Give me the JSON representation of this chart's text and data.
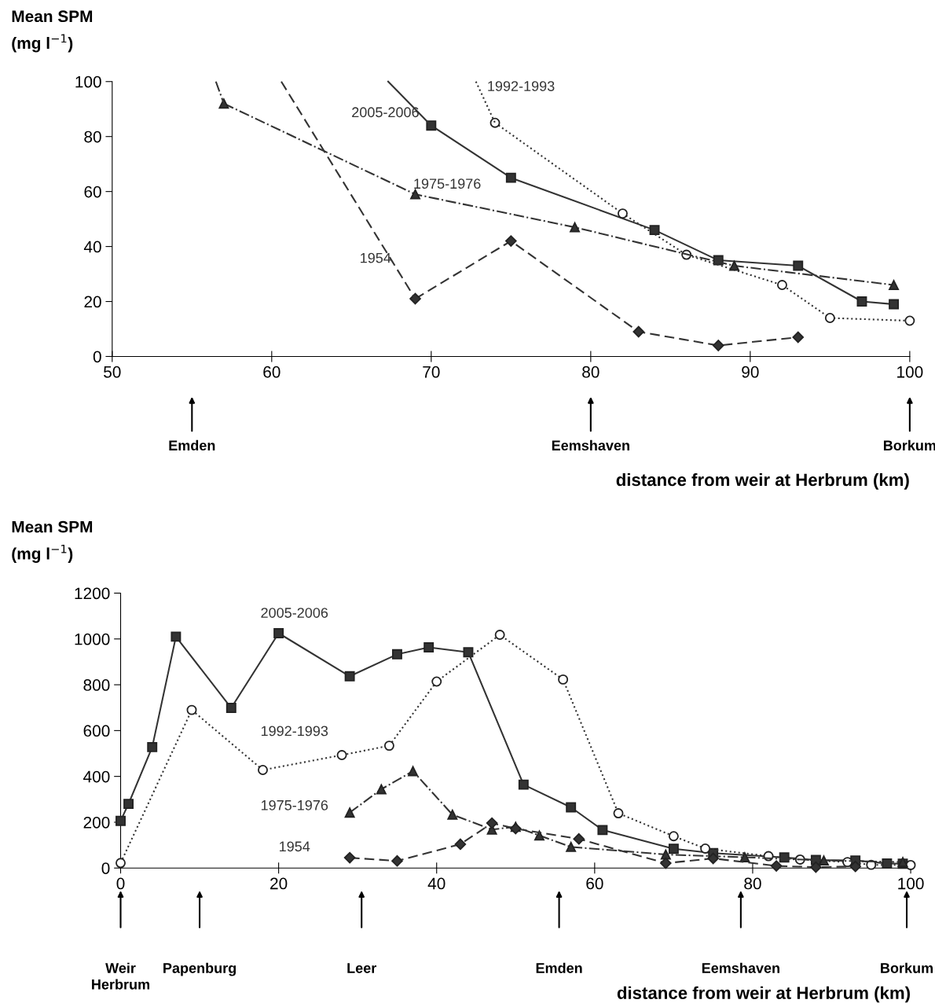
{
  "chart_data": [
    {
      "type": "line",
      "ylabel": "Mean SPM\n(mg l$^{−1}$)",
      "xlabel": "distance from weir at Herbrum (km)",
      "xlim": [
        50,
        100
      ],
      "xticks": [
        50,
        60,
        70,
        80,
        90,
        100
      ],
      "ylim": [
        0,
        100
      ],
      "yticks": [
        0,
        20,
        40,
        60,
        80,
        100
      ],
      "grid": false,
      "legend": false,
      "series": [
        {
          "name": "2005-2006",
          "color": "#333333",
          "line_style": "solid",
          "marker": "square",
          "x": [
            70,
            75,
            84,
            88,
            93,
            97,
            99
          ],
          "values": [
            84,
            65,
            46,
            35,
            33,
            20,
            19
          ]
        },
        {
          "name": "1992-1993",
          "color": "#333333",
          "line_style": "dotted",
          "marker": "circle",
          "x": [
            74,
            82,
            86,
            92,
            95,
            100
          ],
          "values": [
            85,
            52,
            37,
            26,
            14,
            13
          ]
        },
        {
          "name": "1975-1976",
          "color": "#333333",
          "line_style": "dashdot",
          "marker": "triangle",
          "x": [
            57,
            69,
            79,
            89,
            99
          ],
          "values": [
            92,
            59,
            47,
            33,
            26
          ]
        },
        {
          "name": "1954",
          "color": "#333333",
          "line_style": "dashed",
          "marker": "diamond",
          "x": [
            69,
            75,
            83,
            88,
            93
          ],
          "values": [
            21,
            42,
            9,
            4,
            7
          ]
        },
        {
          "color": "#333333",
          "line_style": "solid",
          "marker": "none",
          "x": [
            67.3,
            70
          ],
          "values": [
            100,
            84
          ]
        },
        {
          "color": "#333333",
          "line_style": "dotted",
          "marker": "none",
          "x": [
            72.8,
            74
          ],
          "values": [
            100,
            85
          ]
        },
        {
          "color": "#333333",
          "line_style": "dashdot",
          "marker": "none",
          "x": [
            56.5,
            57
          ],
          "values": [
            100,
            92
          ]
        },
        {
          "color": "#333333",
          "line_style": "dashed",
          "marker": "none",
          "x": [
            60.6,
            69
          ],
          "values": [
            100,
            21
          ]
        }
      ],
      "annotations": [
        "Emden",
        "Eemshaven",
        "Borkum"
      ]
    },
    {
      "type": "line",
      "ylabel": "Mean SPM\n(mg l$^{−1}$)",
      "xlabel": "distance from weir at Herbrum (km)",
      "xlim": [
        0,
        100
      ],
      "xticks": [
        0,
        20,
        40,
        60,
        80,
        100
      ],
      "ylim": [
        0,
        1200
      ],
      "yticks": [
        0,
        200,
        400,
        600,
        800,
        1000,
        1200
      ],
      "grid": false,
      "legend": false,
      "series": [
        {
          "name": "2005-2006",
          "color": "#333333",
          "line_style": "solid",
          "marker": "square",
          "x": [
            0,
            1,
            4,
            7,
            14,
            20,
            29,
            35,
            39,
            44,
            51,
            57,
            61,
            70,
            75,
            84,
            88,
            93,
            97,
            99
          ],
          "values": [
            206,
            280,
            528,
            1010,
            699,
            1025,
            837,
            933,
            963,
            942,
            364,
            265,
            166,
            84,
            65,
            46,
            35,
            33,
            20,
            19
          ]
        },
        {
          "name": "1992-1993",
          "color": "#333333",
          "line_style": "dotted",
          "marker": "circle",
          "x": [
            0,
            9,
            18,
            28,
            34,
            40,
            48,
            56,
            63,
            70,
            74,
            82,
            86,
            92,
            95,
            100
          ],
          "values": [
            22,
            690,
            428,
            493,
            534,
            814,
            1018,
            823,
            239,
            139,
            85,
            52,
            37,
            26,
            14,
            13
          ]
        },
        {
          "name": "1975-1976",
          "color": "#333333",
          "line_style": "dashdot",
          "marker": "triangle",
          "x": [
            29,
            33,
            37,
            42,
            47,
            50,
            53,
            57,
            69,
            79,
            89,
            99
          ],
          "values": [
            242,
            344,
            423,
            233,
            168,
            180,
            142,
            92,
            59,
            47,
            33,
            26
          ]
        },
        {
          "name": "1954",
          "color": "#333333",
          "line_style": "dashed",
          "marker": "diamond",
          "x": [
            29,
            35,
            43,
            47,
            50,
            58,
            69,
            75,
            83,
            88,
            93
          ],
          "values": [
            45,
            31,
            104,
            196,
            172,
            127,
            21,
            42,
            9,
            4,
            7
          ]
        }
      ],
      "annotations": [
        "Weir\nHerbrum",
        "Papenburg",
        "Leer",
        "Emden",
        "Eemshaven",
        "Borkum"
      ]
    }
  ]
}
